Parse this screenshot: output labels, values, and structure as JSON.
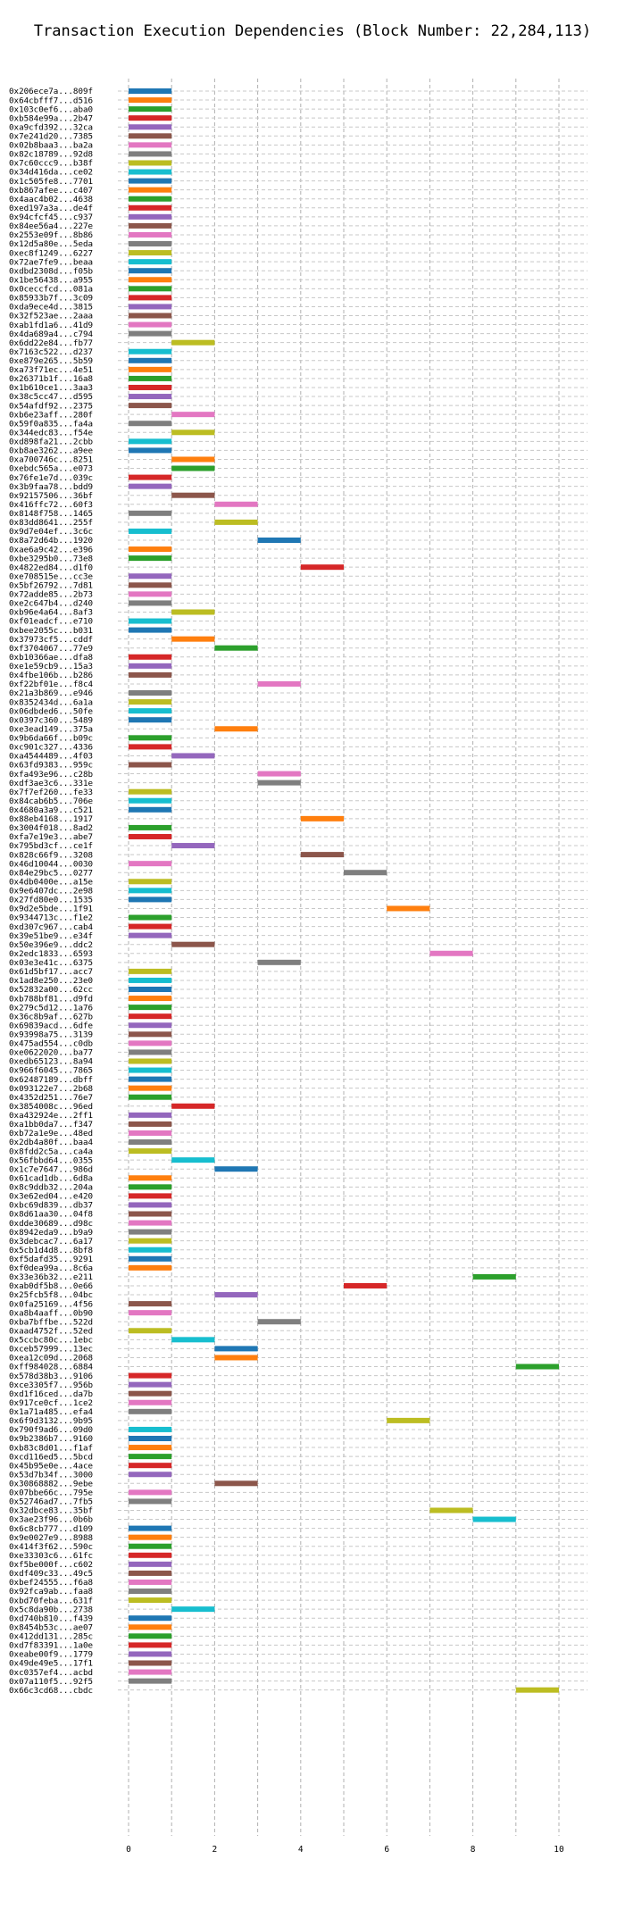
{
  "chart_data": {
    "type": "bar",
    "orientation": "horizontal-gantt",
    "title": "Transaction Execution Dependencies (Block Number: 22,284,113)",
    "xlabel": "",
    "ylabel": "",
    "xlim": [
      0,
      10.5
    ],
    "xticks": [
      0,
      2,
      4,
      6,
      8,
      10
    ],
    "grid": true,
    "palette": [
      "#1f77b4",
      "#ff7f0e",
      "#2ca02c",
      "#d62728",
      "#9467bd",
      "#8c564b",
      "#e377c2",
      "#7f7f7f",
      "#bcbd22",
      "#17becf"
    ],
    "transactions": [
      {
        "label": "0x206ece7a...809f",
        "start": 0
      },
      {
        "label": "0x64cbfff7...d516",
        "start": 0
      },
      {
        "label": "0x103c0ef6...aba0",
        "start": 0
      },
      {
        "label": "0xb584e99a...2b47",
        "start": 0
      },
      {
        "label": "0xa9cfd392...32ca",
        "start": 0
      },
      {
        "label": "0x7e241d20...7385",
        "start": 0
      },
      {
        "label": "0x02b8baa3...ba2a",
        "start": 0
      },
      {
        "label": "0x82c18789...92d8",
        "start": 0
      },
      {
        "label": "0x7c60ccc9...b38f",
        "start": 0
      },
      {
        "label": "0x34d416da...ce02",
        "start": 0
      },
      {
        "label": "0x1c505fe8...7701",
        "start": 0
      },
      {
        "label": "0xb867afee...c407",
        "start": 0
      },
      {
        "label": "0x4aac4b02...4638",
        "start": 0
      },
      {
        "label": "0xed197a3a...de4f",
        "start": 0
      },
      {
        "label": "0x94cfcf45...c937",
        "start": 0
      },
      {
        "label": "0x84ee56a4...227e",
        "start": 0
      },
      {
        "label": "0x2553e09f...8b86",
        "start": 0
      },
      {
        "label": "0x12d5a80e...5eda",
        "start": 0
      },
      {
        "label": "0xec8f1249...6227",
        "start": 0
      },
      {
        "label": "0x72ae7fe9...beaa",
        "start": 0
      },
      {
        "label": "0xdbd2308d...f05b",
        "start": 0
      },
      {
        "label": "0x1be56438...a955",
        "start": 0
      },
      {
        "label": "0x0ceccfcd...081a",
        "start": 0
      },
      {
        "label": "0x85933b7f...3c09",
        "start": 0
      },
      {
        "label": "0xda9ece4d...3815",
        "start": 0
      },
      {
        "label": "0x32f523ae...2aaa",
        "start": 0
      },
      {
        "label": "0xab1fd1a6...41d9",
        "start": 0
      },
      {
        "label": "0x4da689a4...c794",
        "start": 0
      },
      {
        "label": "0x6dd22e84...fb77",
        "start": 1
      },
      {
        "label": "0x7163c522...d237",
        "start": 0
      },
      {
        "label": "0xe879e265...5b59",
        "start": 0
      },
      {
        "label": "0xa73f71ec...4e51",
        "start": 0
      },
      {
        "label": "0x26371b1f...16a8",
        "start": 0
      },
      {
        "label": "0x1b610ce1...3aa3",
        "start": 0
      },
      {
        "label": "0x38c5cc47...d595",
        "start": 0
      },
      {
        "label": "0x54afdf92...2375",
        "start": 0
      },
      {
        "label": "0xb6e23aff...280f",
        "start": 1
      },
      {
        "label": "0x59f0a835...fa4a",
        "start": 0
      },
      {
        "label": "0x344edc83...f54e",
        "start": 1
      },
      {
        "label": "0xd898fa21...2cbb",
        "start": 0
      },
      {
        "label": "0xb8ae3262...a9ee",
        "start": 0
      },
      {
        "label": "0xa700746c...8251",
        "start": 1
      },
      {
        "label": "0xebdc565a...e073",
        "start": 1
      },
      {
        "label": "0x76fe1e7d...039c",
        "start": 0
      },
      {
        "label": "0x3b9faa78...bdd9",
        "start": 0
      },
      {
        "label": "0x92157506...36bf",
        "start": 1
      },
      {
        "label": "0x416ffc72...60f3",
        "start": 2
      },
      {
        "label": "0x8148f758...1465",
        "start": 0
      },
      {
        "label": "0x83dd8641...255f",
        "start": 2
      },
      {
        "label": "0x9d7e04ef...3c6c",
        "start": 0
      },
      {
        "label": "0x8a72d64b...1920",
        "start": 3
      },
      {
        "label": "0xae6a9c42...e396",
        "start": 0
      },
      {
        "label": "0xbe3295b0...73e8",
        "start": 0
      },
      {
        "label": "0x4822ed84...d1f0",
        "start": 4
      },
      {
        "label": "0xe708515e...cc3e",
        "start": 0
      },
      {
        "label": "0x5bf26792...7d81",
        "start": 0
      },
      {
        "label": "0x72adde85...2b73",
        "start": 0
      },
      {
        "label": "0xe2c647b4...d240",
        "start": 0
      },
      {
        "label": "0xb96e4a64...8af3",
        "start": 1
      },
      {
        "label": "0xf01eadcf...e710",
        "start": 0
      },
      {
        "label": "0xbee2055c...b031",
        "start": 0
      },
      {
        "label": "0x37973cf5...cddf",
        "start": 1
      },
      {
        "label": "0xf3704067...77e9",
        "start": 2
      },
      {
        "label": "0xb10366ae...dfa8",
        "start": 0
      },
      {
        "label": "0xe1e59cb9...15a3",
        "start": 0
      },
      {
        "label": "0x4fbe106b...b286",
        "start": 0
      },
      {
        "label": "0xf22bf01e...f8c4",
        "start": 3
      },
      {
        "label": "0x21a3b869...e946",
        "start": 0
      },
      {
        "label": "0x8352434d...6a1a",
        "start": 0
      },
      {
        "label": "0x06dbded6...50fe",
        "start": 0
      },
      {
        "label": "0x0397c360...5489",
        "start": 0
      },
      {
        "label": "0xe3ead149...375a",
        "start": 2
      },
      {
        "label": "0x9b6da66f...b09c",
        "start": 0
      },
      {
        "label": "0xc901c327...4336",
        "start": 0
      },
      {
        "label": "0xa4544489...4f03",
        "start": 1
      },
      {
        "label": "0x63fd9383...959c",
        "start": 0
      },
      {
        "label": "0xfa493e96...c28b",
        "start": 3
      },
      {
        "label": "0xdf3ae3c6...331e",
        "start": 3
      },
      {
        "label": "0x7f7ef260...fe33",
        "start": 0
      },
      {
        "label": "0x84cab6b5...706e",
        "start": 0
      },
      {
        "label": "0x4680a3a9...c521",
        "start": 0
      },
      {
        "label": "0x88eb4168...1917",
        "start": 4
      },
      {
        "label": "0x3004f018...8ad2",
        "start": 0
      },
      {
        "label": "0xfa7e19e3...abe7",
        "start": 0
      },
      {
        "label": "0x795bd3cf...ce1f",
        "start": 1
      },
      {
        "label": "0x828c66f9...3208",
        "start": 4
      },
      {
        "label": "0x46d10044...0030",
        "start": 0
      },
      {
        "label": "0x84e29bc5...0277",
        "start": 5
      },
      {
        "label": "0x4db0400e...a15e",
        "start": 0
      },
      {
        "label": "0x9e6407dc...2e98",
        "start": 0
      },
      {
        "label": "0x27fd80e0...1535",
        "start": 0
      },
      {
        "label": "0x9d2e5bde...1f91",
        "start": 6
      },
      {
        "label": "0x9344713c...f1e2",
        "start": 0
      },
      {
        "label": "0xd307c967...cab4",
        "start": 0
      },
      {
        "label": "0x39e51be9...e34f",
        "start": 0
      },
      {
        "label": "0x50e396e9...ddc2",
        "start": 1
      },
      {
        "label": "0x2edc1833...6593",
        "start": 7
      },
      {
        "label": "0x03e3e41c...6375",
        "start": 3
      },
      {
        "label": "0x61d5bf17...acc7",
        "start": 0
      },
      {
        "label": "0x1ad8e250...23e0",
        "start": 0
      },
      {
        "label": "0x52832a00...62cc",
        "start": 0
      },
      {
        "label": "0xb788bf81...d9fd",
        "start": 0
      },
      {
        "label": "0x279c5d12...1a76",
        "start": 0
      },
      {
        "label": "0x36c8b9af...627b",
        "start": 0
      },
      {
        "label": "0x69839acd...6dfe",
        "start": 0
      },
      {
        "label": "0x93998a75...3139",
        "start": 0
      },
      {
        "label": "0x475ad554...c0db",
        "start": 0
      },
      {
        "label": "0xe0622020...ba77",
        "start": 0
      },
      {
        "label": "0xedb65123...8a94",
        "start": 0
      },
      {
        "label": "0x966f6045...7865",
        "start": 0
      },
      {
        "label": "0x62487189...dbff",
        "start": 0
      },
      {
        "label": "0x093122e7...2b68",
        "start": 0
      },
      {
        "label": "0x4352d251...76e7",
        "start": 0
      },
      {
        "label": "0x3854008c...96ed",
        "start": 1
      },
      {
        "label": "0xa432924e...2ff1",
        "start": 0
      },
      {
        "label": "0xa1bb0da7...f347",
        "start": 0
      },
      {
        "label": "0xb72a1e9e...48ed",
        "start": 0
      },
      {
        "label": "0x2db4a80f...baa4",
        "start": 0
      },
      {
        "label": "0x8fdd2c5a...ca4a",
        "start": 0
      },
      {
        "label": "0x56fbbd64...0355",
        "start": 1
      },
      {
        "label": "0x1c7e7647...986d",
        "start": 2
      },
      {
        "label": "0x61cad1db...6d8a",
        "start": 0
      },
      {
        "label": "0x8c9ddb32...204a",
        "start": 0
      },
      {
        "label": "0x3e62ed04...e420",
        "start": 0
      },
      {
        "label": "0xbc69d839...db37",
        "start": 0
      },
      {
        "label": "0x8d61aa30...04f8",
        "start": 0
      },
      {
        "label": "0xdde30689...d98c",
        "start": 0
      },
      {
        "label": "0x8942eda9...b9a9",
        "start": 0
      },
      {
        "label": "0x3debcac7...6a17",
        "start": 0
      },
      {
        "label": "0x5cb1d4d8...8bf8",
        "start": 0
      },
      {
        "label": "0xf5dafd35...9291",
        "start": 0
      },
      {
        "label": "0xf0dea99a...8c6a",
        "start": 0
      },
      {
        "label": "0x33e36b32...e211",
        "start": 8
      },
      {
        "label": "0xab0df5b8...0e66",
        "start": 5
      },
      {
        "label": "0x25fcb5f8...04bc",
        "start": 2
      },
      {
        "label": "0x0fa25169...4f56",
        "start": 0
      },
      {
        "label": "0xa8b4aaff...0b90",
        "start": 0
      },
      {
        "label": "0xba7bffbe...522d",
        "start": 3
      },
      {
        "label": "0xaad4752f...52ed",
        "start": 0
      },
      {
        "label": "0x5ccbc80c...1ebc",
        "start": 1
      },
      {
        "label": "0xceb57999...13ec",
        "start": 2
      },
      {
        "label": "0xea12c09d...2068",
        "start": 2
      },
      {
        "label": "0xff984028...6884",
        "start": 9
      },
      {
        "label": "0x578d38b3...9106",
        "start": 0
      },
      {
        "label": "0xce3305f7...956b",
        "start": 0
      },
      {
        "label": "0xd1f16ced...da7b",
        "start": 0
      },
      {
        "label": "0x917ce0cf...1ce2",
        "start": 0
      },
      {
        "label": "0x1a71a485...efa4",
        "start": 0
      },
      {
        "label": "0x6f9d3132...9b95",
        "start": 6
      },
      {
        "label": "0x790f9ad6...09d0",
        "start": 0
      },
      {
        "label": "0x9b2386b7...9160",
        "start": 0
      },
      {
        "label": "0xb83c8d01...f1af",
        "start": 0
      },
      {
        "label": "0xcd116ed5...5bcd",
        "start": 0
      },
      {
        "label": "0x45b95e0e...4ace",
        "start": 0
      },
      {
        "label": "0x53d7b34f...3000",
        "start": 0
      },
      {
        "label": "0x30868882...9ebe",
        "start": 2
      },
      {
        "label": "0x07bbe66c...795e",
        "start": 0
      },
      {
        "label": "0x52746ad7...7fb5",
        "start": 0
      },
      {
        "label": "0x32dbce83...35bf",
        "start": 7
      },
      {
        "label": "0x3ae23f96...0b6b",
        "start": 8
      },
      {
        "label": "0x6c8cb777...d109",
        "start": 0
      },
      {
        "label": "0x9e0027e9...8988",
        "start": 0
      },
      {
        "label": "0x414f3f62...590c",
        "start": 0
      },
      {
        "label": "0xe33303c6...61fc",
        "start": 0
      },
      {
        "label": "0xf5be000f...c602",
        "start": 0
      },
      {
        "label": "0xdf409c33...49c5",
        "start": 0
      },
      {
        "label": "0xbef24555...f6a8",
        "start": 0
      },
      {
        "label": "0x92fca9ab...faa8",
        "start": 0
      },
      {
        "label": "0xbd70feba...631f",
        "start": 0
      },
      {
        "label": "0x5c8da90b...2738",
        "start": 1
      },
      {
        "label": "0xd740b810...f439",
        "start": 0
      },
      {
        "label": "0x8454b53c...ae07",
        "start": 0
      },
      {
        "label": "0x412dd131...285c",
        "start": 0
      },
      {
        "label": "0xd7f83391...1a0e",
        "start": 0
      },
      {
        "label": "0xeabe00f9...1779",
        "start": 0
      },
      {
        "label": "0x49de49e5...17f1",
        "start": 0
      },
      {
        "label": "0xc0357ef4...acbd",
        "start": 0
      },
      {
        "label": "0x07a110f5...92f5",
        "start": 0
      },
      {
        "label": "0x66c3cd68...cbdc",
        "start": 9
      }
    ]
  }
}
